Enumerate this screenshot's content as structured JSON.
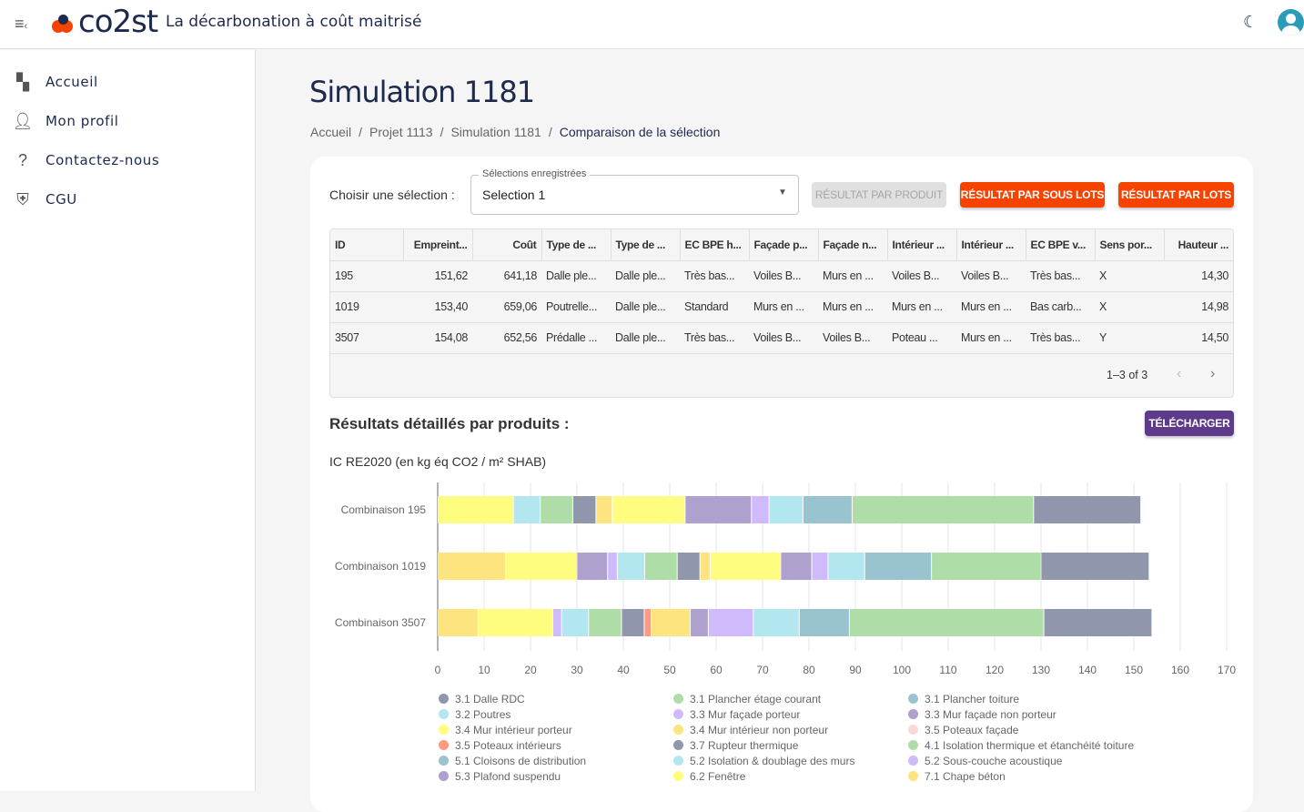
{
  "header": {
    "brand": "co2st",
    "tagline": "La décarbonation à coût maitrisé"
  },
  "sidebar": {
    "items": [
      {
        "label": "Accueil",
        "icon": "dashboard-icon"
      },
      {
        "label": "Mon profil",
        "icon": "person-icon"
      },
      {
        "label": "Contactez-nous",
        "icon": "question-icon"
      },
      {
        "label": "CGU",
        "icon": "shield-icon"
      }
    ]
  },
  "page": {
    "title": "Simulation 1181",
    "breadcrumb": [
      "Accueil",
      "Projet 1113",
      "Simulation 1181",
      "Comparaison de la sélection"
    ]
  },
  "selection": {
    "label": "Choisir une sélection :",
    "field_label": "Sélections enregistrées",
    "value": "Selection 1"
  },
  "buttons": {
    "par_produit": "RÉSULTAT PAR PRODUIT",
    "par_sous_lots": "RÉSULTAT PAR SOUS LOTS",
    "par_lots": "RÉSULTAT PAR LOTS",
    "telecharger": "TÉLÉCHARGER"
  },
  "table": {
    "columns": [
      "ID",
      "Empreint...",
      "Coût",
      "Type de ...",
      "Type de ...",
      "EC BPE h...",
      "Façade p...",
      "Façade n...",
      "Intérieur ...",
      "Intérieur ...",
      "EC BPE v...",
      "Sens por...",
      "Hauteur ..."
    ],
    "rows": [
      [
        "195",
        "151,62",
        "641,18",
        "Dalle ple...",
        "Dalle ple...",
        "Très bas...",
        "Voiles B...",
        "Murs en ...",
        "Voiles B...",
        "Voiles B...",
        "Très bas...",
        "X",
        "14,30"
      ],
      [
        "1019",
        "153,40",
        "659,06",
        "Poutrelle...",
        "Dalle ple...",
        "Standard",
        "Murs en ...",
        "Murs en ...",
        "Murs en ...",
        "Murs en ...",
        "Bas carb...",
        "X",
        "14,98"
      ],
      [
        "3507",
        "154,08",
        "652,56",
        "Prédalle ...",
        "Dalle ple...",
        "Très bas...",
        "Voiles B...",
        "Voiles B...",
        "Poteau ...",
        "Murs en ...",
        "Très bas...",
        "Y",
        "14,50"
      ]
    ],
    "pagination": "1–3 of 3"
  },
  "results": {
    "title": "Résultats détaillés par produits :",
    "unit": "IC RE2020 (en kg éq CO2 / m² SHAB)"
  },
  "chart_data": {
    "type": "bar",
    "orientation": "horizontal",
    "stacked": true,
    "xlim": [
      0,
      170
    ],
    "xticks": [
      0,
      10,
      20,
      30,
      40,
      50,
      60,
      70,
      80,
      90,
      100,
      110,
      120,
      130,
      140,
      150,
      160,
      170
    ],
    "grid": true,
    "legend_position": "bottom",
    "categories": [
      "Combinaison 195",
      "Combinaison 1019",
      "Combinaison 3507"
    ],
    "legend": [
      {
        "name": "3.1 Dalle RDC",
        "color": "#9096ab"
      },
      {
        "name": "3.2 Poutres",
        "color": "#b3e7f0"
      },
      {
        "name": "3.4 Mur intérieur porteur",
        "color": "#fffd7f"
      },
      {
        "name": "3.5 Poteaux intérieurs",
        "color": "#fd9a80"
      },
      {
        "name": "5.1 Cloisons de distribution",
        "color": "#9ac3d0"
      },
      {
        "name": "5.3 Plafond suspendu",
        "color": "#aea1cd"
      },
      {
        "name": "3.1 Plancher étage courant",
        "color": "#aedda7"
      },
      {
        "name": "3.3 Mur façade porteur",
        "color": "#cfbbfb"
      },
      {
        "name": "3.4 Mur intérieur non porteur",
        "color": "#fde47f"
      },
      {
        "name": "3.7 Rupteur thermique",
        "color": "#9096ab"
      },
      {
        "name": "5.2 Isolation & doublage des murs",
        "color": "#b3e7f0"
      },
      {
        "name": "6.2 Fenêtre",
        "color": "#fffd7f"
      },
      {
        "name": "3.1 Plancher toiture",
        "color": "#9ac3d0"
      },
      {
        "name": "3.3 Mur façade non porteur",
        "color": "#aea1cd"
      },
      {
        "name": "3.5 Poteaux façade",
        "color": "#fcd8d8"
      },
      {
        "name": "4.1 Isolation thermique et étanchéité toiture",
        "color": "#aedda7"
      },
      {
        "name": "5.2 Sous-couche acoustique",
        "color": "#cfbbfb"
      },
      {
        "name": "7.1 Chape béton",
        "color": "#fde47f"
      }
    ],
    "series": [
      {
        "name": "7.1 Chape béton",
        "values": [
          0,
          14.7,
          8.8
        ]
      },
      {
        "name": "3.4 Mur intérieur porteur",
        "values": [
          16.4,
          15.4,
          16.1
        ]
      },
      {
        "name": "5.3 Plafond suspendu",
        "values": [
          0,
          6.6,
          0
        ]
      },
      {
        "name": "5.2 Sous-couche acoustique",
        "values": [
          0,
          2.1,
          1.9
        ]
      },
      {
        "name": "3.2 Poutres",
        "values": [
          5.8,
          5.9,
          5.8
        ]
      },
      {
        "name": "3.1 Plancher étage courant",
        "values": [
          7.0,
          7.0,
          7.1
        ]
      },
      {
        "name": "3.7 Rupteur thermique",
        "values": [
          5.0,
          4.9,
          4.9
        ]
      },
      {
        "name": "3.5 Poteaux intérieurs",
        "values": [
          0,
          0,
          1.5
        ]
      },
      {
        "name": "3.4 Mur intérieur non porteur",
        "values": [
          3.5,
          2.2,
          8.4
        ]
      },
      {
        "name": "6.2 Fenêtre",
        "values": [
          15.7,
          15.2,
          0
        ]
      },
      {
        "name": "3.3 Mur façade non porteur",
        "values": [
          14.3,
          6.7,
          3.9
        ]
      },
      {
        "name": "3.3 Mur façade porteur",
        "values": [
          3.8,
          3.5,
          9.7
        ]
      },
      {
        "name": "5.2 Isolation & doublage des murs",
        "values": [
          7.3,
          7.9,
          9.9
        ]
      },
      {
        "name": "3.1 Plancher toiture",
        "values": [
          10.6,
          14.4,
          10.8
        ]
      },
      {
        "name": "4.1 Isolation thermique et étanchéité toiture",
        "values": [
          39.1,
          23.6,
          41.9
        ]
      },
      {
        "name": "3.1 Dalle RDC",
        "values": [
          23.1,
          23.3,
          23.3
        ]
      }
    ]
  }
}
